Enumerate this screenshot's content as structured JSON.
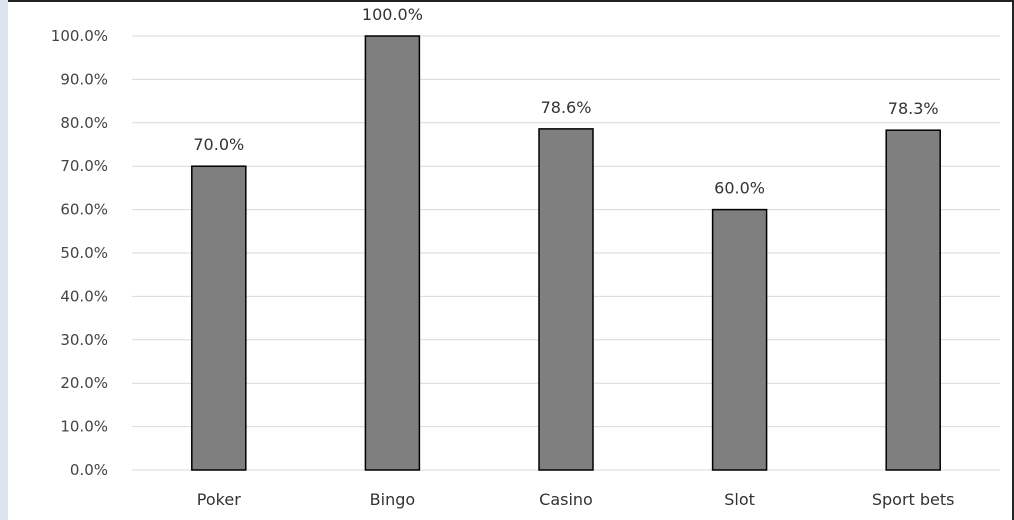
{
  "chart_data": {
    "type": "bar",
    "categories": [
      "Poker",
      "Bingo",
      "Casino",
      "Slot",
      "Sport bets"
    ],
    "values": [
      70.0,
      100.0,
      78.6,
      60.0,
      78.3
    ],
    "data_labels": [
      "70.0%",
      "100.0%",
      "78.6%",
      "60.0%",
      "78.3%"
    ],
    "yticks": [
      "0.0%",
      "10.0%",
      "20.0%",
      "30.0%",
      "40.0%",
      "50.0%",
      "60.0%",
      "70.0%",
      "80.0%",
      "90.0%",
      "100.0%"
    ],
    "ylim": [
      0,
      100
    ],
    "grid": true,
    "legend": "none",
    "colors": {
      "bar": "#7f7f7f",
      "bar_border": "#000000",
      "grid": "#d9d9d9"
    }
  }
}
